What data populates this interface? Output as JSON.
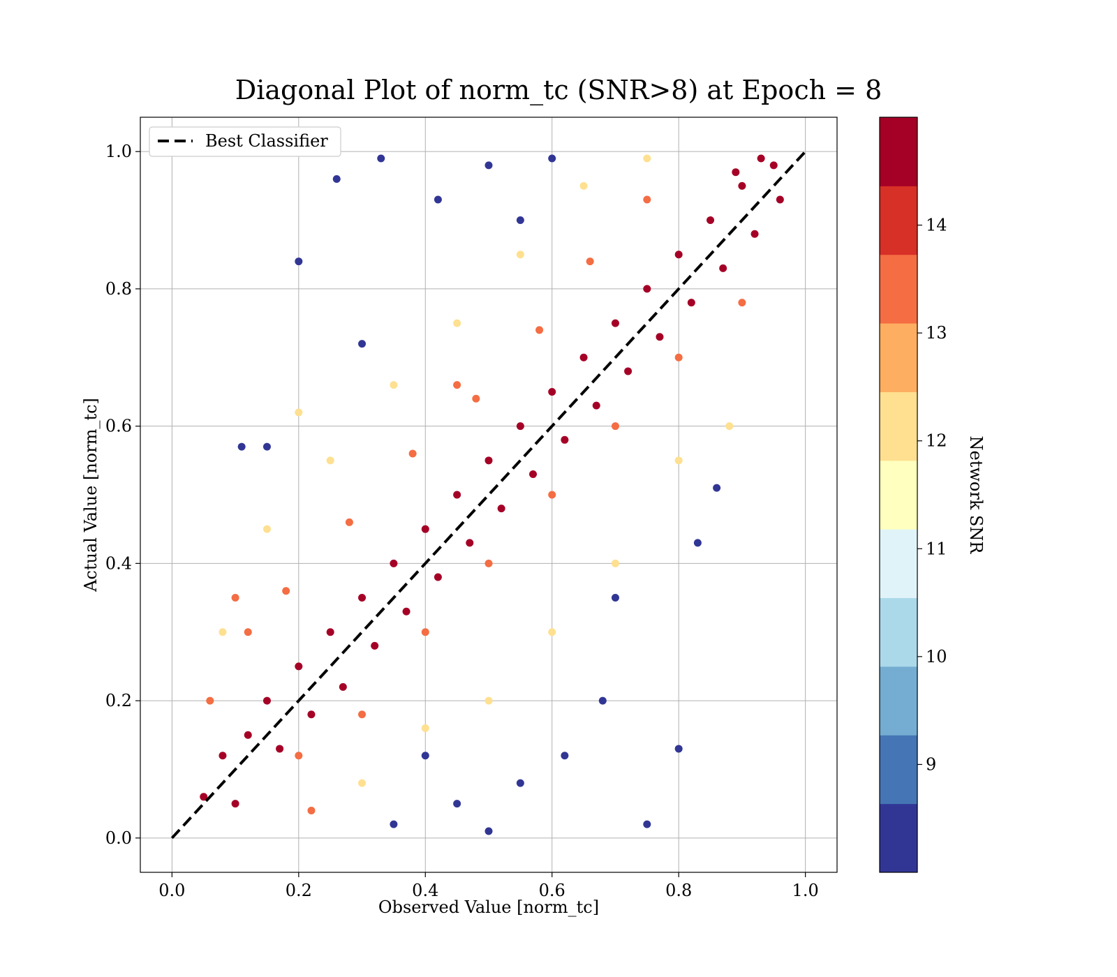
{
  "chart_data": {
    "type": "scatter",
    "title": "Diagonal Plot of norm_tc (SNR>8) at Epoch = 8",
    "xlabel": "Observed Value [norm_tc]",
    "ylabel": "Actual Value [norm_tc]",
    "xlim": [
      -0.05,
      1.05
    ],
    "ylim": [
      -0.05,
      1.05
    ],
    "x_ticks": [
      "0.0",
      "0.2",
      "0.4",
      "0.6",
      "0.8",
      "1.0"
    ],
    "y_ticks": [
      "0.0",
      "0.2",
      "0.4",
      "0.6",
      "0.8",
      "1.0"
    ],
    "grid": true,
    "legend": {
      "placement": "upper-left",
      "entries": [
        "Best Classifier"
      ]
    },
    "reference_line": {
      "name": "Best Classifier",
      "style": "dashed",
      "color": "#000000",
      "points": [
        [
          0,
          0
        ],
        [
          1,
          1
        ]
      ]
    },
    "colorbar": {
      "label": "Network SNR",
      "min": 8,
      "max": 15,
      "ticks": [
        "9",
        "10",
        "11",
        "12",
        "13",
        "14"
      ],
      "colors": [
        "#313695",
        "#4575b4",
        "#74add1",
        "#abd9e9",
        "#e0f3f8",
        "#ffffbf",
        "#fee090",
        "#fdae61",
        "#f46d43",
        "#d73027",
        "#a50026"
      ]
    },
    "series": [
      {
        "snr_group": ">= 13.5",
        "color": "#a50026",
        "points": [
          [
            0.05,
            0.06
          ],
          [
            0.08,
            0.12
          ],
          [
            0.1,
            0.05
          ],
          [
            0.12,
            0.15
          ],
          [
            0.15,
            0.2
          ],
          [
            0.17,
            0.13
          ],
          [
            0.2,
            0.25
          ],
          [
            0.22,
            0.18
          ],
          [
            0.25,
            0.3
          ],
          [
            0.27,
            0.22
          ],
          [
            0.3,
            0.35
          ],
          [
            0.32,
            0.28
          ],
          [
            0.35,
            0.4
          ],
          [
            0.37,
            0.33
          ],
          [
            0.4,
            0.45
          ],
          [
            0.42,
            0.38
          ],
          [
            0.45,
            0.5
          ],
          [
            0.47,
            0.43
          ],
          [
            0.5,
            0.55
          ],
          [
            0.52,
            0.48
          ],
          [
            0.55,
            0.6
          ],
          [
            0.57,
            0.53
          ],
          [
            0.6,
            0.65
          ],
          [
            0.62,
            0.58
          ],
          [
            0.65,
            0.7
          ],
          [
            0.67,
            0.63
          ],
          [
            0.7,
            0.75
          ],
          [
            0.72,
            0.68
          ],
          [
            0.75,
            0.8
          ],
          [
            0.77,
            0.73
          ],
          [
            0.8,
            0.85
          ],
          [
            0.82,
            0.78
          ],
          [
            0.85,
            0.9
          ],
          [
            0.87,
            0.83
          ],
          [
            0.9,
            0.95
          ],
          [
            0.92,
            0.88
          ],
          [
            0.95,
            0.98
          ],
          [
            0.96,
            0.93
          ],
          [
            0.93,
            0.99
          ],
          [
            0.89,
            0.97
          ]
        ]
      },
      {
        "snr_group": "12 - 13.5",
        "color": "#f46d43",
        "points": [
          [
            0.06,
            0.2
          ],
          [
            0.12,
            0.3
          ],
          [
            0.2,
            0.12
          ],
          [
            0.18,
            0.36
          ],
          [
            0.3,
            0.18
          ],
          [
            0.28,
            0.46
          ],
          [
            0.4,
            0.3
          ],
          [
            0.38,
            0.56
          ],
          [
            0.5,
            0.4
          ],
          [
            0.48,
            0.64
          ],
          [
            0.6,
            0.5
          ],
          [
            0.58,
            0.74
          ],
          [
            0.7,
            0.6
          ],
          [
            0.66,
            0.84
          ],
          [
            0.8,
            0.7
          ],
          [
            0.75,
            0.93
          ],
          [
            0.9,
            0.78
          ],
          [
            0.22,
            0.04
          ],
          [
            0.1,
            0.35
          ],
          [
            0.45,
            0.66
          ]
        ]
      },
      {
        "snr_group": "10 - 12",
        "color": "#fee090",
        "points": [
          [
            0.08,
            0.3
          ],
          [
            0.15,
            0.45
          ],
          [
            0.25,
            0.55
          ],
          [
            0.3,
            0.08
          ],
          [
            0.35,
            0.66
          ],
          [
            0.4,
            0.16
          ],
          [
            0.45,
            0.75
          ],
          [
            0.5,
            0.2
          ],
          [
            0.55,
            0.85
          ],
          [
            0.6,
            0.3
          ],
          [
            0.65,
            0.95
          ],
          [
            0.7,
            0.4
          ],
          [
            0.75,
            0.99
          ],
          [
            0.8,
            0.55
          ],
          [
            0.88,
            0.6
          ],
          [
            0.2,
            0.62
          ]
        ]
      },
      {
        "snr_group": "< 10",
        "color": "#313695",
        "points": [
          [
            0.11,
            0.57
          ],
          [
            0.2,
            0.84
          ],
          [
            0.26,
            0.96
          ],
          [
            0.33,
            0.99
          ],
          [
            0.42,
            0.93
          ],
          [
            0.5,
            0.98
          ],
          [
            0.55,
            0.9
          ],
          [
            0.6,
            0.99
          ],
          [
            0.45,
            0.05
          ],
          [
            0.55,
            0.08
          ],
          [
            0.62,
            0.12
          ],
          [
            0.68,
            0.2
          ],
          [
            0.75,
            0.02
          ],
          [
            0.8,
            0.13
          ],
          [
            0.83,
            0.43
          ],
          [
            0.86,
            0.51
          ],
          [
            0.7,
            0.35
          ],
          [
            0.35,
            0.02
          ],
          [
            0.5,
            0.01
          ],
          [
            0.4,
            0.12
          ],
          [
            0.15,
            0.57
          ],
          [
            0.3,
            0.72
          ]
        ]
      }
    ]
  }
}
